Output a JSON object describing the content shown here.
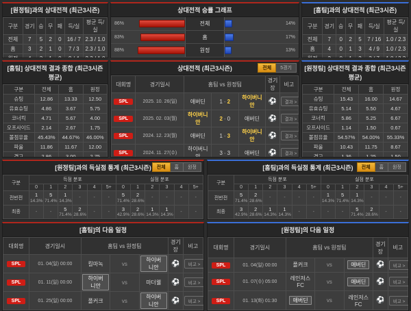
{
  "colors": {
    "home_accent": "#b0261c",
    "away_accent": "#3a6fd8",
    "highlight": "#ffd24a",
    "badge_red": "#cf1d15"
  },
  "top_left": {
    "title": "[원정팀]과의 상대전적 (최근3시즌)",
    "headers": [
      "구분",
      "경기",
      "승",
      "무",
      "패",
      "득/실",
      "평균 득/실"
    ],
    "rows": [
      [
        "전체",
        "7",
        "5",
        "2",
        "0",
        "16 / 7",
        "2.3 / 1.0"
      ],
      [
        "홈",
        "3",
        "2",
        "1",
        "0",
        "7 / 3",
        "2.3 / 1.0"
      ],
      [
        "원정",
        "4",
        "3",
        "1",
        "0",
        "9 / 4",
        "2.3 / 1.0"
      ]
    ]
  },
  "graph": {
    "title": "상대전적 승률 그래프"
  },
  "chart_data": {
    "type": "bar",
    "title": "상대전적 승률 그래프",
    "categories": [
      "전체",
      "홈",
      "원정"
    ],
    "series": [
      {
        "name": "홈팀 승률(적색)",
        "values": [
          86,
          83,
          88
        ]
      },
      {
        "name": "원정팀 승률(청색)",
        "values": [
          14,
          17,
          13
        ]
      }
    ],
    "unit": "%",
    "xlim": [
      0,
      100
    ],
    "legend_position": "none"
  },
  "top_right": {
    "title": "[홈팀]과의 상대전적 (최근3시즌)",
    "headers": [
      "구분",
      "경기",
      "승",
      "무",
      "패",
      "득/실",
      "평균 득/실"
    ],
    "rows": [
      [
        "전체",
        "7",
        "0",
        "2",
        "5",
        "7 / 16",
        "1.0 / 2.3"
      ],
      [
        "홈",
        "4",
        "0",
        "1",
        "3",
        "4 / 9",
        "1.0 / 2.3"
      ],
      [
        "원정",
        "3",
        "0",
        "1",
        "2",
        "3 / 7",
        "1.0 / 2.3"
      ]
    ]
  },
  "summary_home": {
    "title": "[홈팀] 상대전적 결과 종합 (최근3시즌 평균)",
    "headers": [
      "구분",
      "전체",
      "홈",
      "원정"
    ],
    "rows": [
      [
        "슈팅",
        "12.86",
        "13.33",
        "12.50"
      ],
      [
        "유효슈팅",
        "4.86",
        "3.67",
        "5.75"
      ],
      [
        "코너킥",
        "4.71",
        "5.67",
        "4.00"
      ],
      [
        "오프사이드",
        "2.14",
        "2.67",
        "1.75"
      ],
      [
        "볼점유율",
        "45.43%",
        "44.67%",
        "46.00%"
      ],
      [
        "파울",
        "11.86",
        "11.67",
        "12.00"
      ],
      [
        "경고",
        "2.86",
        "3.00",
        "2.75"
      ],
      [
        "퇴장",
        "0.00",
        "0.00",
        "0.00"
      ]
    ]
  },
  "summary_away": {
    "title": "[원정팀] 상대전적 결과 종합 (최근3시즌 평균)",
    "headers": [
      "구분",
      "전체",
      "홈",
      "원정"
    ],
    "rows": [
      [
        "슈팅",
        "15.43",
        "16.00",
        "14.67"
      ],
      [
        "유효슈팅",
        "5.14",
        "5.50",
        "4.67"
      ],
      [
        "코너킥",
        "5.86",
        "5.25",
        "6.67"
      ],
      [
        "오프사이드",
        "1.14",
        "1.50",
        "0.67"
      ],
      [
        "볼점유율",
        "54.57%",
        "54.00%",
        "55.33%"
      ],
      [
        "파울",
        "10.43",
        "11.75",
        "8.67"
      ],
      [
        "경고",
        "1.36",
        "1.25",
        "1.50"
      ],
      [
        "퇴장",
        "0.00",
        "0.00",
        "0.00"
      ]
    ]
  },
  "h2h": {
    "title": "상대전적 (최근3시즌)",
    "tabs": [
      "전체",
      "5경기"
    ],
    "active_tab": 0,
    "headers": {
      "league": "대회명",
      "date": "경기일시",
      "match": "홈팀  vs  원정팀",
      "stadium": "경기장",
      "note": "비고"
    },
    "button_label": "결과 >",
    "rows": [
      {
        "league": "SPL",
        "date": "2025. 10. 26(일)",
        "home": "애버딘",
        "home_score": "1",
        "away_score": "2",
        "away": "하이버니안",
        "winner": "away"
      },
      {
        "league": "SPL",
        "date": "2025. 02. 03(월)",
        "home": "하이버니안",
        "home_score": "2",
        "away_score": "0",
        "away": "애버딘",
        "winner": "home"
      },
      {
        "league": "SPL",
        "date": "2024. 12. 23(월)",
        "home": "애버딘",
        "home_score": "1",
        "away_score": "3",
        "away": "하이버니안",
        "winner": "away"
      },
      {
        "league": "SPL",
        "date": "2024. 11. 27(수)",
        "home": "하이버니안",
        "home_score": "3",
        "away_score": "3",
        "away": "애버딘",
        "winner": "draw"
      },
      {
        "league": "SPL",
        "date": "2024. 02. 18(일)",
        "home": "애버딘",
        "home_score": "2",
        "away_score": "2",
        "away": "하이버니안",
        "winner": "draw"
      },
      {
        "league": "SPL",
        "date": "2023. 12. 04(월)",
        "home": "하이버니안",
        "home_score": "2",
        "away_score": "0",
        "away": "애버딘",
        "winner": "home"
      }
    ]
  },
  "goals_left": {
    "title": "[원정팀]과의 득실점 통계 (최근3시즌)",
    "tabs": [
      "전체",
      "홈",
      "원정"
    ],
    "active_tab": 0,
    "corner_label": "구분",
    "group_headers": [
      "득점 분포",
      "실점 분포"
    ],
    "col_headers": [
      "0",
      "1",
      "2",
      "3",
      "4",
      "5+"
    ],
    "rows": [
      {
        "label": "전반전",
        "score": [
          [
            "1",
            "14.3%"
          ],
          [
            "5",
            "71.4%"
          ],
          [
            "1",
            "14.3%"
          ],
          null,
          null,
          null
        ],
        "concede": [
          [
            "5",
            "71.4%"
          ],
          [
            "2",
            "28.6%"
          ],
          null,
          null,
          null,
          null
        ]
      },
      {
        "label": "최종",
        "score": [
          null,
          null,
          [
            "5",
            "71.4%"
          ],
          [
            "2",
            "28.6%"
          ],
          null,
          null
        ],
        "concede": [
          [
            "3",
            "42.9%"
          ],
          [
            "2",
            "28.6%"
          ],
          [
            "1",
            "14.3%"
          ],
          [
            "1",
            "14.3%"
          ],
          null,
          null
        ]
      }
    ]
  },
  "goals_right": {
    "title": "[홈팀]과의 득실점 통계 (최근3시즌)",
    "tabs": [
      "전체",
      "홈",
      "원정"
    ],
    "active_tab": 0,
    "corner_label": "구분",
    "group_headers": [
      "득점 분포",
      "실점 분포"
    ],
    "col_headers": [
      "0",
      "1",
      "2",
      "3",
      "4",
      "5+"
    ],
    "rows": [
      {
        "label": "전반전",
        "score": [
          [
            "5",
            "71.4%"
          ],
          [
            "2",
            "28.6%"
          ],
          null,
          null,
          null,
          null
        ],
        "concede": [
          [
            "1",
            "14.3%"
          ],
          [
            "5",
            "71.4%"
          ],
          [
            "1",
            "14.3%"
          ],
          null,
          null,
          null
        ]
      },
      {
        "label": "최종",
        "score": [
          [
            "3",
            "42.9%"
          ],
          [
            "2",
            "28.6%"
          ],
          [
            "1",
            "14.3%"
          ],
          [
            "1",
            "14.3%"
          ],
          null,
          null
        ],
        "concede": [
          null,
          null,
          [
            "5",
            "71.4%"
          ],
          [
            "2",
            "28.6%"
          ],
          null,
          null
        ]
      }
    ]
  },
  "fixtures_left": {
    "title": "[홈팀]의 다음 일정",
    "headers": {
      "league": "대회명",
      "date": "경기일시",
      "match": "홈팀  vs  원정팀",
      "stadium": "경기장",
      "note": "비고"
    },
    "button_label": "비고 >",
    "vs_label": "vs",
    "rows": [
      {
        "league": "SPL",
        "date": "01. 04(일) 00:00",
        "home": "킬마녹",
        "away": "하이버니안",
        "highlight": "away"
      },
      {
        "league": "SPL",
        "date": "01. 11(일) 00:00",
        "home": "하이버니안",
        "away": "마더웰",
        "highlight": "home"
      },
      {
        "league": "SPL",
        "date": "01. 25(일) 00:00",
        "home": "폴커크",
        "away": "하이버니안",
        "highlight": "away"
      }
    ]
  },
  "fixtures_right": {
    "title": "[원정팀]의 다음 일정",
    "headers": {
      "league": "대회명",
      "date": "경기일시",
      "match": "홈팀  vs  원정팀",
      "stadium": "경기장",
      "note": "비고"
    },
    "button_label": "비고 >",
    "vs_label": "vs",
    "rows": [
      {
        "league": "SPL",
        "date": "01. 04(일) 00:00",
        "home": "폴커크",
        "away": "애버딘",
        "highlight": "away"
      },
      {
        "league": "SPL",
        "date": "01. 07(수) 05:00",
        "home": "레인저스FC",
        "away": "애버딘",
        "highlight": "away"
      },
      {
        "league": "SPL",
        "date": "01. 13(화) 01:30",
        "home": "애버딘",
        "away": "레인저스FC",
        "highlight": "home"
      }
    ]
  },
  "icons": {
    "stadium": "soccer-ball-icon"
  }
}
